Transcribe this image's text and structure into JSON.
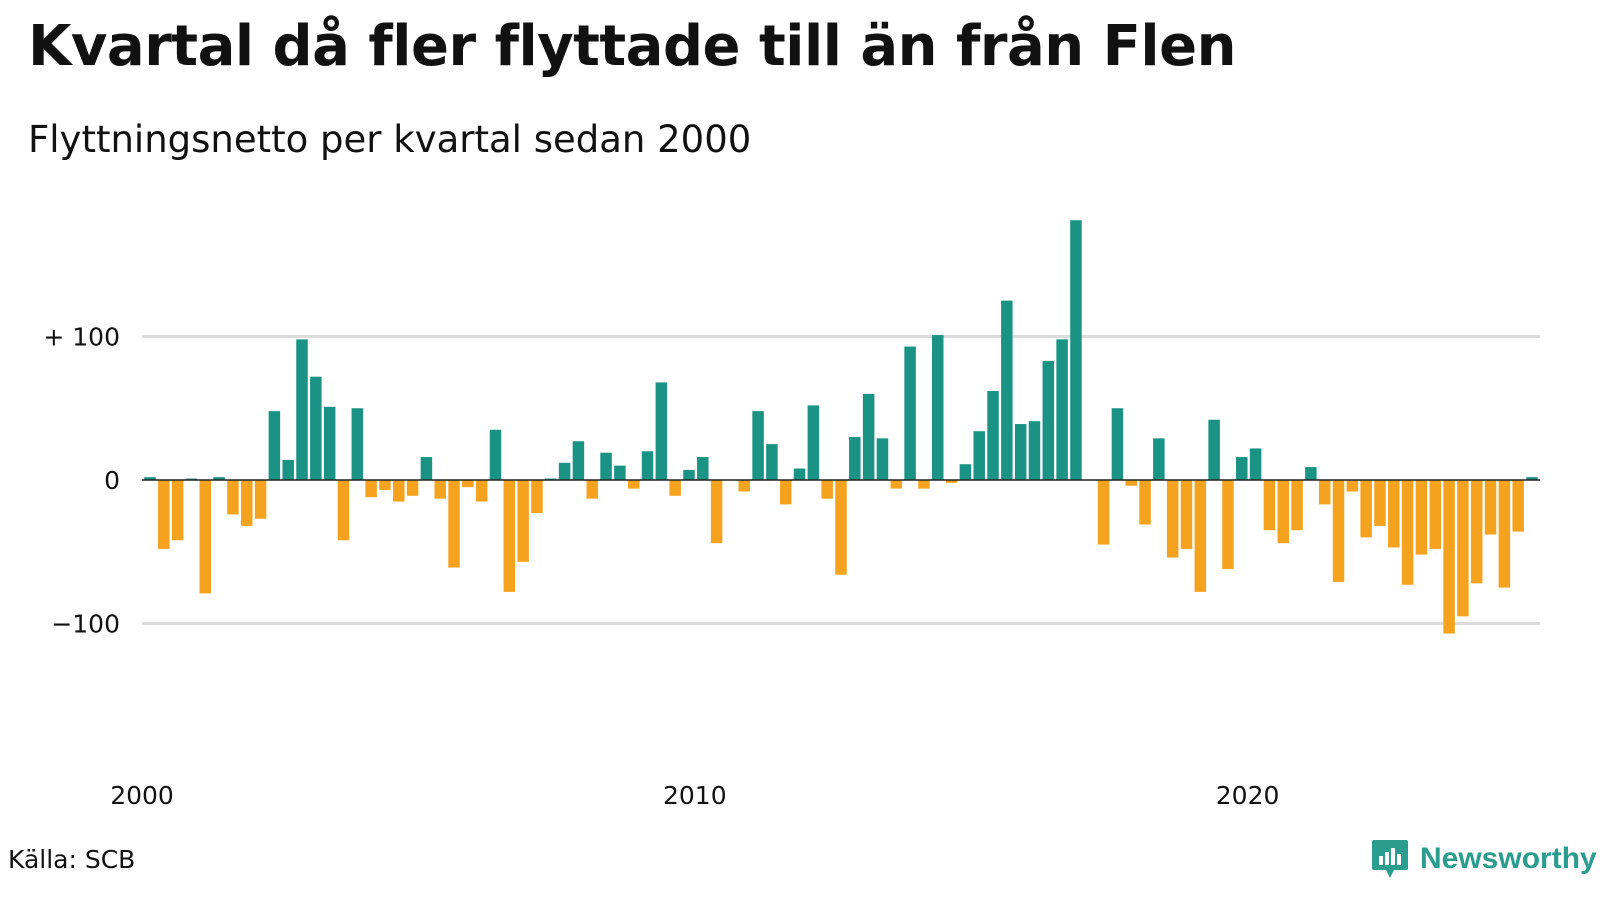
{
  "header": {
    "title": "Kvartal då fler flyttade till än från Flen",
    "subtitle": "Flyttningsnetto per kvartal sedan 2000"
  },
  "footer": {
    "source": "Källa: SCB",
    "brand": "Newsworthy"
  },
  "colors": {
    "positive": "#1a9385",
    "negative": "#f5a31f",
    "grid": "#dcdcdc",
    "zero_line": "#222222",
    "brand": "#2a9d8f"
  },
  "chart_data": {
    "type": "bar",
    "title": "Kvartal då fler flyttade till än från Flen",
    "subtitle": "Flyttningsnetto per kvartal sedan 2000",
    "x_start": "2000 Q1",
    "frequency": "quarterly",
    "values": [
      2,
      -48,
      -42,
      1,
      -79,
      2,
      -24,
      -32,
      -27,
      48,
      14,
      98,
      72,
      51,
      -42,
      50,
      -12,
      -7,
      -15,
      -11,
      16,
      -13,
      -61,
      -5,
      -15,
      35,
      -78,
      -57,
      -23,
      1,
      12,
      27,
      -13,
      19,
      10,
      -6,
      20,
      68,
      -11,
      7,
      16,
      -44,
      0,
      -8,
      48,
      25,
      -17,
      8,
      52,
      -13,
      -66,
      30,
      60,
      29,
      -6,
      93,
      -6,
      101,
      -2,
      11,
      34,
      62,
      125,
      39,
      41,
      83,
      98,
      181,
      0,
      -45,
      50,
      -4,
      -31,
      29,
      -54,
      -48,
      -78,
      42,
      -62,
      16,
      22,
      -35,
      -44,
      -35,
      9,
      -17,
      -71,
      -8,
      -40,
      -32,
      -47,
      -73,
      -52,
      -48,
      -107,
      -95,
      -72,
      -38,
      -75,
      -36,
      2
    ],
    "yticks": [
      {
        "value": 100,
        "label": "+ 100"
      },
      {
        "value": 0,
        "label": "0"
      },
      {
        "value": -100,
        "label": "−100"
      }
    ],
    "xticks": [
      {
        "label": "2000"
      },
      {
        "label": "2010"
      },
      {
        "label": "2020"
      }
    ],
    "ylim": [
      -200,
      200
    ],
    "grid": true,
    "legend": "none"
  }
}
